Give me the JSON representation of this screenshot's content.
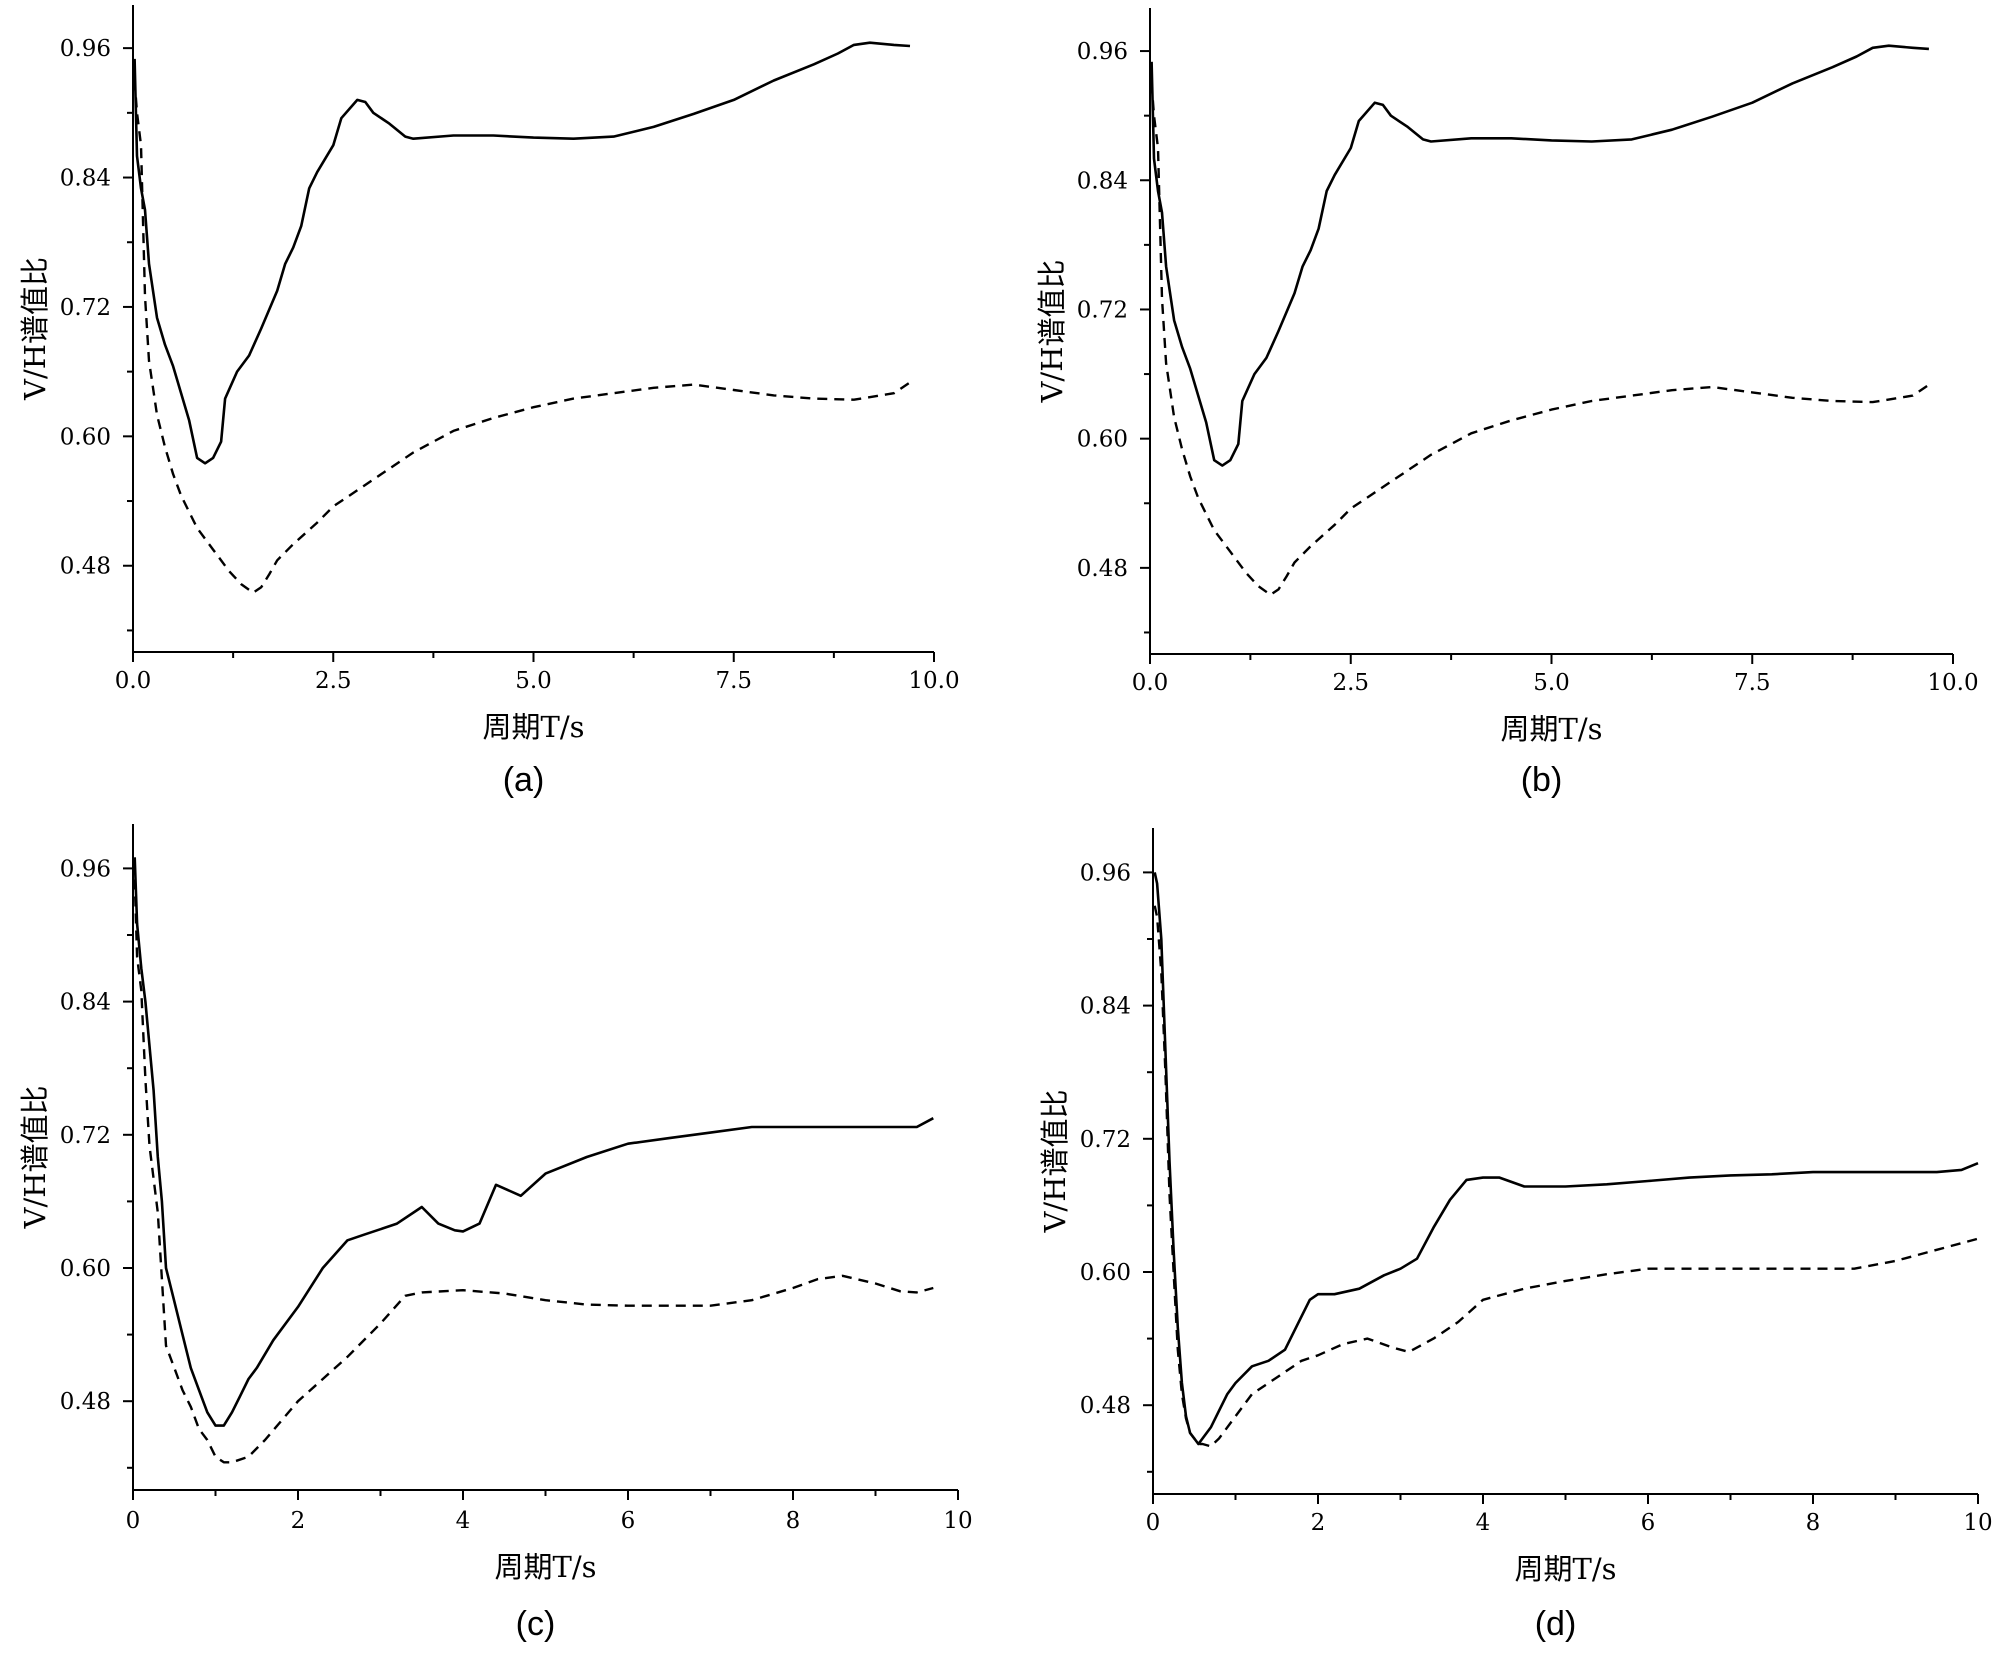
{
  "chart_data": [
    {
      "type": "line",
      "panel_label": "(a)",
      "xlabel": "周期T/s",
      "ylabel": "V/H谱值比",
      "xlim": [
        0,
        10
      ],
      "ylim": [
        0.4,
        1.0
      ],
      "xticks": [
        0,
        2.5,
        5,
        7.5,
        10
      ],
      "xtick_labels": [
        "0.0",
        "2.5",
        "5.0",
        "7.5",
        "10.0"
      ],
      "yticks": [
        0.48,
        0.6,
        0.72,
        0.84,
        0.96
      ],
      "ytick_labels": [
        "0.48",
        "0.60",
        "0.72",
        "0.84",
        "0.96"
      ],
      "legend": "none",
      "grid": false,
      "series": [
        {
          "style": "solid",
          "x": [
            0.02,
            0.05,
            0.1,
            0.15,
            0.2,
            0.3,
            0.4,
            0.5,
            0.6,
            0.7,
            0.8,
            0.9,
            1.0,
            1.1,
            1.15,
            1.3,
            1.45,
            1.6,
            1.8,
            1.9,
            2.0,
            2.1,
            2.2,
            2.3,
            2.5,
            2.6,
            2.8,
            2.9,
            3.0,
            3.2,
            3.4,
            3.5,
            4.0,
            4.5,
            5.0,
            5.5,
            6.0,
            6.5,
            7.0,
            7.5,
            8.0,
            8.5,
            8.8,
            9.0,
            9.2,
            9.5,
            9.7
          ],
          "y": [
            0.95,
            0.86,
            0.83,
            0.81,
            0.76,
            0.71,
            0.685,
            0.665,
            0.64,
            0.615,
            0.58,
            0.575,
            0.58,
            0.595,
            0.635,
            0.66,
            0.675,
            0.7,
            0.735,
            0.76,
            0.775,
            0.795,
            0.83,
            0.845,
            0.87,
            0.895,
            0.912,
            0.91,
            0.9,
            0.89,
            0.878,
            0.876,
            0.879,
            0.879,
            0.877,
            0.876,
            0.878,
            0.887,
            0.899,
            0.912,
            0.93,
            0.945,
            0.955,
            0.963,
            0.965,
            0.963,
            0.962
          ]
        },
        {
          "style": "dashed",
          "x": [
            0.02,
            0.05,
            0.1,
            0.15,
            0.2,
            0.3,
            0.4,
            0.5,
            0.6,
            0.8,
            1.0,
            1.2,
            1.35,
            1.5,
            1.6,
            1.7,
            1.8,
            2.0,
            2.3,
            2.5,
            2.8,
            3.0,
            3.5,
            4.0,
            4.5,
            5.0,
            5.5,
            6.0,
            6.5,
            7.0,
            7.5,
            8.0,
            8.5,
            9.0,
            9.5,
            9.7
          ],
          "y": [
            0.93,
            0.9,
            0.87,
            0.73,
            0.67,
            0.62,
            0.59,
            0.565,
            0.545,
            0.515,
            0.495,
            0.475,
            0.463,
            0.455,
            0.46,
            0.472,
            0.485,
            0.5,
            0.52,
            0.535,
            0.55,
            0.56,
            0.585,
            0.605,
            0.617,
            0.627,
            0.635,
            0.64,
            0.645,
            0.648,
            0.643,
            0.638,
            0.635,
            0.634,
            0.64,
            0.65
          ]
        }
      ]
    },
    {
      "type": "line",
      "panel_label": "(b)",
      "xlabel": "周期T/s",
      "ylabel": "V/H谱值比",
      "xlim": [
        0,
        10
      ],
      "ylim": [
        0.4,
        1.0
      ],
      "xticks": [
        0,
        2.5,
        5,
        7.5,
        10
      ],
      "xtick_labels": [
        "0.0",
        "2.5",
        "5.0",
        "7.5",
        "10.0"
      ],
      "yticks": [
        0.48,
        0.6,
        0.72,
        0.84,
        0.96
      ],
      "ytick_labels": [
        "0.48",
        "0.60",
        "0.72",
        "0.84",
        "0.96"
      ],
      "legend": "none",
      "grid": false,
      "series": [
        {
          "style": "solid",
          "x": [
            0.02,
            0.05,
            0.1,
            0.15,
            0.2,
            0.3,
            0.4,
            0.5,
            0.6,
            0.7,
            0.8,
            0.9,
            1.0,
            1.1,
            1.15,
            1.3,
            1.45,
            1.6,
            1.8,
            1.9,
            2.0,
            2.1,
            2.2,
            2.3,
            2.5,
            2.6,
            2.8,
            2.9,
            3.0,
            3.2,
            3.4,
            3.5,
            4.0,
            4.5,
            5.0,
            5.5,
            6.0,
            6.5,
            7.0,
            7.5,
            8.0,
            8.5,
            8.8,
            9.0,
            9.2,
            9.5,
            9.7
          ],
          "y": [
            0.95,
            0.86,
            0.83,
            0.81,
            0.76,
            0.71,
            0.685,
            0.665,
            0.64,
            0.615,
            0.58,
            0.575,
            0.58,
            0.595,
            0.635,
            0.66,
            0.675,
            0.7,
            0.735,
            0.76,
            0.775,
            0.795,
            0.83,
            0.845,
            0.87,
            0.895,
            0.912,
            0.91,
            0.9,
            0.89,
            0.878,
            0.876,
            0.879,
            0.879,
            0.877,
            0.876,
            0.878,
            0.887,
            0.899,
            0.912,
            0.93,
            0.945,
            0.955,
            0.963,
            0.965,
            0.963,
            0.962
          ]
        },
        {
          "style": "dashed",
          "x": [
            0.02,
            0.05,
            0.1,
            0.15,
            0.2,
            0.3,
            0.4,
            0.5,
            0.6,
            0.8,
            1.0,
            1.2,
            1.35,
            1.5,
            1.6,
            1.7,
            1.8,
            2.0,
            2.3,
            2.5,
            2.8,
            3.0,
            3.5,
            4.0,
            4.5,
            5.0,
            5.5,
            6.0,
            6.5,
            7.0,
            7.5,
            8.0,
            8.5,
            9.0,
            9.5,
            9.7
          ],
          "y": [
            0.93,
            0.9,
            0.87,
            0.73,
            0.67,
            0.62,
            0.59,
            0.565,
            0.545,
            0.515,
            0.495,
            0.475,
            0.463,
            0.455,
            0.46,
            0.472,
            0.485,
            0.5,
            0.52,
            0.535,
            0.55,
            0.56,
            0.585,
            0.605,
            0.617,
            0.627,
            0.635,
            0.64,
            0.645,
            0.648,
            0.643,
            0.638,
            0.635,
            0.634,
            0.64,
            0.65
          ]
        }
      ]
    },
    {
      "type": "line",
      "panel_label": "(c)",
      "xlabel": "周期T/s",
      "ylabel": "V/H谱值比",
      "xlim": [
        0,
        10
      ],
      "ylim": [
        0.4,
        1.0
      ],
      "xticks": [
        0,
        2,
        4,
        6,
        8,
        10
      ],
      "xtick_labels": [
        "0",
        "2",
        "4",
        "6",
        "8",
        "10"
      ],
      "yticks": [
        0.48,
        0.6,
        0.72,
        0.84,
        0.96
      ],
      "ytick_labels": [
        "0.48",
        "0.60",
        "0.72",
        "0.84",
        "0.96"
      ],
      "legend": "none",
      "grid": false,
      "series": [
        {
          "style": "solid",
          "x": [
            0.02,
            0.05,
            0.1,
            0.15,
            0.2,
            0.25,
            0.3,
            0.35,
            0.4,
            0.5,
            0.6,
            0.7,
            0.8,
            0.9,
            1.0,
            1.1,
            1.2,
            1.3,
            1.4,
            1.5,
            1.7,
            2.0,
            2.3,
            2.6,
            2.8,
            3.0,
            3.2,
            3.5,
            3.7,
            3.9,
            4.0,
            4.2,
            4.4,
            4.7,
            5.0,
            5.5,
            6.0,
            6.5,
            7.0,
            7.5,
            8.0,
            8.5,
            9.0,
            9.5,
            9.7
          ],
          "y": [
            0.97,
            0.91,
            0.87,
            0.84,
            0.8,
            0.76,
            0.7,
            0.66,
            0.6,
            0.57,
            0.54,
            0.51,
            0.49,
            0.47,
            0.458,
            0.458,
            0.47,
            0.485,
            0.5,
            0.51,
            0.535,
            0.565,
            0.6,
            0.625,
            0.63,
            0.635,
            0.64,
            0.655,
            0.64,
            0.634,
            0.633,
            0.64,
            0.675,
            0.665,
            0.685,
            0.7,
            0.712,
            0.717,
            0.722,
            0.727,
            0.727,
            0.727,
            0.727,
            0.727,
            0.735
          ]
        },
        {
          "style": "dashed",
          "x": [
            0.02,
            0.05,
            0.1,
            0.15,
            0.2,
            0.3,
            0.4,
            0.5,
            0.6,
            0.7,
            0.8,
            0.9,
            1.0,
            1.1,
            1.2,
            1.4,
            1.6,
            2.0,
            2.3,
            2.6,
            3.0,
            3.3,
            3.5,
            4.0,
            4.5,
            5.0,
            5.5,
            6.0,
            6.5,
            7.0,
            7.5,
            8.0,
            8.3,
            8.6,
            9.0,
            9.3,
            9.5,
            9.7
          ],
          "y": [
            0.95,
            0.88,
            0.85,
            0.77,
            0.71,
            0.65,
            0.53,
            0.51,
            0.49,
            0.475,
            0.455,
            0.445,
            0.43,
            0.425,
            0.425,
            0.43,
            0.445,
            0.48,
            0.5,
            0.52,
            0.55,
            0.575,
            0.578,
            0.58,
            0.577,
            0.571,
            0.567,
            0.566,
            0.566,
            0.566,
            0.571,
            0.582,
            0.59,
            0.593,
            0.586,
            0.579,
            0.578,
            0.582
          ]
        }
      ]
    },
    {
      "type": "line",
      "panel_label": "(d)",
      "xlabel": "周期T/s",
      "ylabel": "V/H谱值比",
      "xlim": [
        0,
        10
      ],
      "ylim": [
        0.4,
        1.0
      ],
      "xticks": [
        0,
        2,
        4,
        6,
        8,
        10
      ],
      "xtick_labels": [
        "0",
        "2",
        "4",
        "6",
        "8",
        "10"
      ],
      "yticks": [
        0.48,
        0.6,
        0.72,
        0.84,
        0.96
      ],
      "ytick_labels": [
        "0.48",
        "0.60",
        "0.72",
        "0.84",
        "0.96"
      ],
      "legend": "none",
      "grid": false,
      "series": [
        {
          "style": "solid",
          "x": [
            0.02,
            0.05,
            0.1,
            0.15,
            0.2,
            0.25,
            0.3,
            0.35,
            0.4,
            0.45,
            0.5,
            0.55,
            0.6,
            0.7,
            0.8,
            0.9,
            1.0,
            1.2,
            1.4,
            1.6,
            1.8,
            1.9,
            2.0,
            2.2,
            2.5,
            2.8,
            3.0,
            3.2,
            3.4,
            3.6,
            3.8,
            4.0,
            4.2,
            4.5,
            5.0,
            5.5,
            6.0,
            6.5,
            7.0,
            7.5,
            8.0,
            8.5,
            9.0,
            9.5,
            9.8,
            10.0
          ],
          "y": [
            0.96,
            0.95,
            0.9,
            0.8,
            0.7,
            0.62,
            0.55,
            0.5,
            0.47,
            0.455,
            0.45,
            0.445,
            0.45,
            0.46,
            0.475,
            0.49,
            0.5,
            0.515,
            0.52,
            0.53,
            0.56,
            0.575,
            0.58,
            0.58,
            0.585,
            0.597,
            0.603,
            0.612,
            0.64,
            0.665,
            0.683,
            0.685,
            0.685,
            0.677,
            0.677,
            0.679,
            0.682,
            0.685,
            0.687,
            0.688,
            0.69,
            0.69,
            0.69,
            0.69,
            0.692,
            0.698
          ]
        },
        {
          "style": "dashed",
          "x": [
            0.02,
            0.05,
            0.1,
            0.15,
            0.2,
            0.25,
            0.3,
            0.35,
            0.4,
            0.45,
            0.5,
            0.55,
            0.6,
            0.7,
            0.8,
            1.0,
            1.2,
            1.5,
            1.8,
            2.0,
            2.3,
            2.6,
            2.9,
            3.1,
            3.4,
            3.7,
            4.0,
            4.5,
            5.0,
            5.5,
            6.0,
            6.5,
            7.0,
            7.5,
            8.0,
            8.5,
            9.0,
            9.5,
            10.0
          ],
          "y": [
            0.93,
            0.92,
            0.87,
            0.78,
            0.67,
            0.6,
            0.53,
            0.49,
            0.468,
            0.455,
            0.45,
            0.445,
            0.445,
            0.443,
            0.45,
            0.47,
            0.49,
            0.505,
            0.52,
            0.525,
            0.535,
            0.54,
            0.532,
            0.528,
            0.54,
            0.555,
            0.575,
            0.585,
            0.592,
            0.598,
            0.603,
            0.603,
            0.603,
            0.603,
            0.603,
            0.603,
            0.61,
            0.62,
            0.63
          ]
        }
      ]
    }
  ]
}
